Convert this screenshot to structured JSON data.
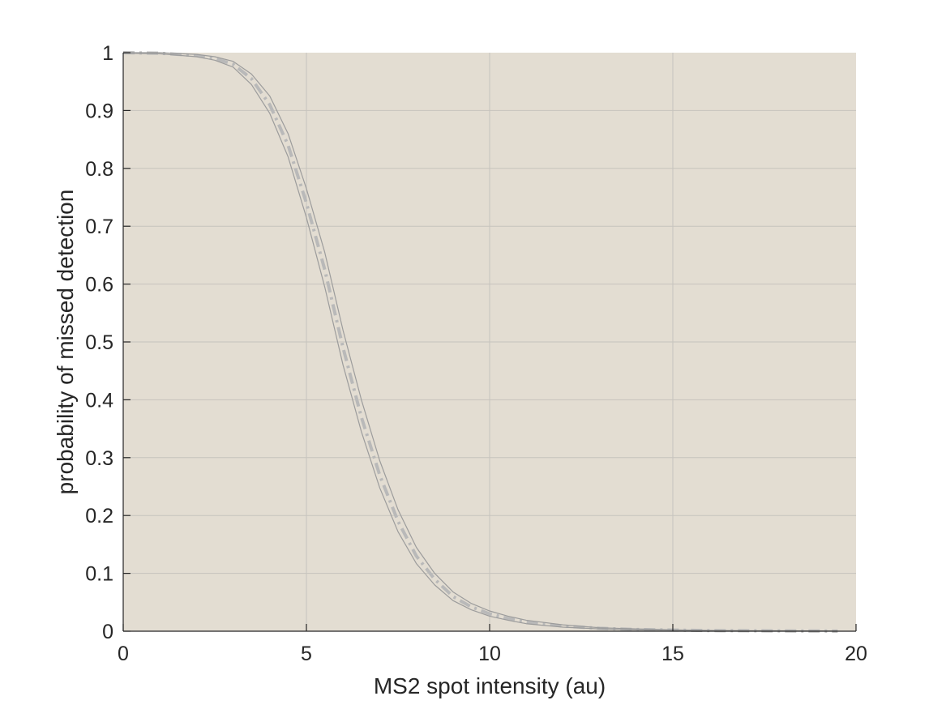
{
  "chart_data": {
    "type": "line",
    "title": "",
    "xlabel": "MS2 spot intensity (au)",
    "ylabel": "probability of missed detection",
    "xlim": [
      0,
      20
    ],
    "ylim": [
      0,
      1
    ],
    "xticks": [
      0,
      5,
      10,
      15,
      20
    ],
    "xtick_labels": [
      "0",
      "5",
      "10",
      "15",
      "20"
    ],
    "yticks": [
      0,
      0.1,
      0.2,
      0.3,
      0.4,
      0.5,
      0.6,
      0.7,
      0.8,
      0.9,
      1
    ],
    "ytick_labels": [
      "0",
      "0.1",
      "0.2",
      "0.3",
      "0.4",
      "0.5",
      "0.6",
      "0.7",
      "0.8",
      "0.9",
      "1"
    ],
    "grid": true,
    "legend": "none",
    "colors": {
      "plot_background": "#e3ddd2",
      "grid": "#c6c3bd",
      "axis": "#262626",
      "curve": "#b9b9b9",
      "band": "#9c9c9c"
    },
    "series": [
      {
        "style": "dash-dot",
        "x": [
          0,
          1,
          2,
          2.5,
          3,
          3.5,
          4,
          4.5,
          5,
          5.5,
          6,
          6.5,
          7,
          7.5,
          8,
          8.5,
          9,
          9.5,
          10,
          10.5,
          11,
          12,
          13,
          14,
          15,
          16,
          17,
          18,
          19,
          19.5
        ],
        "y": [
          1.0,
          0.999,
          0.995,
          0.99,
          0.98,
          0.955,
          0.91,
          0.84,
          0.74,
          0.625,
          0.49,
          0.37,
          0.27,
          0.19,
          0.13,
          0.09,
          0.06,
          0.042,
          0.03,
          0.022,
          0.016,
          0.009,
          0.005,
          0.003,
          0.002,
          0.001,
          0.0008,
          0.0005,
          0.0003,
          0.0002
        ]
      },
      {
        "style": "band-upper",
        "x": [
          0,
          1,
          2,
          2.5,
          3,
          3.5,
          4,
          4.5,
          5,
          5.5,
          6,
          6.5,
          7,
          7.5,
          8,
          8.5,
          9,
          9.5,
          10,
          10.5,
          11,
          12,
          13,
          14,
          15,
          16,
          17,
          18,
          19,
          19.5
        ],
        "y": [
          1.0,
          1.0,
          0.997,
          0.993,
          0.985,
          0.963,
          0.925,
          0.86,
          0.765,
          0.655,
          0.52,
          0.4,
          0.295,
          0.21,
          0.145,
          0.1,
          0.068,
          0.048,
          0.035,
          0.026,
          0.019,
          0.011,
          0.006,
          0.004,
          0.0025,
          0.0015,
          0.001,
          0.0007,
          0.0004,
          0.0003
        ]
      },
      {
        "style": "band-lower",
        "x": [
          0,
          1,
          2,
          2.5,
          3,
          3.5,
          4,
          4.5,
          5,
          5.5,
          6,
          6.5,
          7,
          7.5,
          8,
          8.5,
          9,
          9.5,
          10,
          10.5,
          11,
          12,
          13,
          14,
          15,
          16,
          17,
          18,
          19,
          19.5
        ],
        "y": [
          0.999,
          0.998,
          0.993,
          0.987,
          0.975,
          0.945,
          0.895,
          0.82,
          0.715,
          0.595,
          0.46,
          0.345,
          0.248,
          0.172,
          0.117,
          0.08,
          0.053,
          0.037,
          0.026,
          0.019,
          0.013,
          0.007,
          0.004,
          0.0025,
          0.0015,
          0.0008,
          0.0006,
          0.0003,
          0.0002,
          0.0001
        ]
      }
    ]
  }
}
